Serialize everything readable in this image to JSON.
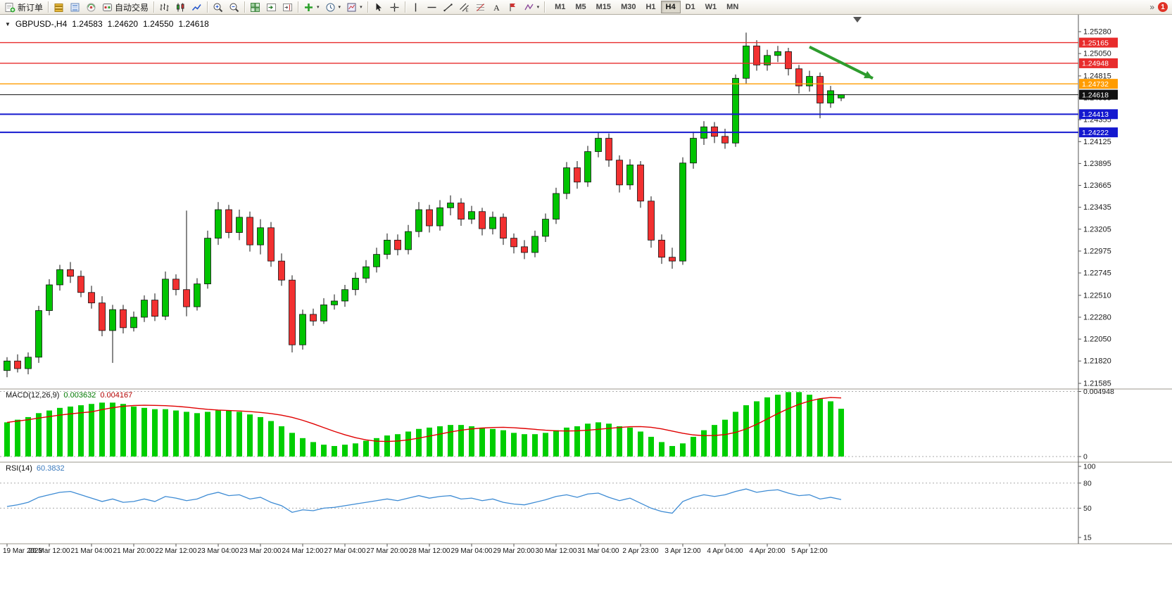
{
  "icons": {
    "collapse_arrow": "▼",
    "caret": "▾",
    "chevron_double": "»"
  },
  "toolbar": {
    "left": [
      {
        "type": "btn",
        "icon": "new-order-icon",
        "label": "新订单"
      },
      {
        "type": "sep"
      },
      {
        "type": "btn",
        "icon": "price-list-icon"
      },
      {
        "type": "btn",
        "icon": "depth-of-market-icon"
      },
      {
        "type": "btn",
        "icon": "community-icon"
      },
      {
        "type": "btn",
        "icon": "autotrading-icon",
        "label": "自动交易"
      },
      {
        "type": "sep"
      },
      {
        "type": "btn",
        "icon": "bar-chart-icon"
      },
      {
        "type": "btn",
        "icon": "candlestick-chart-icon"
      },
      {
        "type": "btn",
        "icon": "line-chart-icon"
      },
      {
        "type": "sep"
      },
      {
        "type": "btn",
        "icon": "zoom-in-icon"
      },
      {
        "type": "btn",
        "icon": "zoom-out-icon"
      },
      {
        "type": "sep"
      },
      {
        "type": "btn",
        "icon": "tile-windows-icon"
      },
      {
        "type": "btn",
        "icon": "auto-scroll-icon"
      },
      {
        "type": "btn",
        "icon": "chart-shift-icon"
      },
      {
        "type": "sep"
      },
      {
        "type": "btn",
        "icon": "add-indicator-icon",
        "caret": true
      },
      {
        "type": "btn",
        "icon": "period-clock-icon",
        "caret": true
      },
      {
        "type": "btn",
        "icon": "template-icon",
        "caret": true
      },
      {
        "type": "sep"
      },
      {
        "type": "btn",
        "icon": "cursor-icon"
      },
      {
        "type": "btn",
        "icon": "crosshair-icon"
      },
      {
        "type": "sep"
      },
      {
        "type": "btn",
        "icon": "vertical-line-icon"
      },
      {
        "type": "btn",
        "icon": "horizontal-line-icon"
      },
      {
        "type": "btn",
        "icon": "trendline-icon"
      },
      {
        "type": "btn",
        "icon": "channel-icon"
      },
      {
        "type": "btn",
        "icon": "fibonacci-icon"
      },
      {
        "type": "btn",
        "icon": "text-icon"
      },
      {
        "type": "btn",
        "icon": "arrow-label-icon"
      },
      {
        "type": "btn",
        "icon": "shapes-icon",
        "caret": true
      },
      {
        "type": "sep"
      }
    ],
    "timeframes": [
      "M1",
      "M5",
      "M15",
      "M30",
      "H1",
      "H4",
      "D1",
      "W1",
      "MN"
    ],
    "active_timeframe": "H4",
    "notification_count": "1"
  },
  "header": {
    "symbol_period": "GBPUSD-,H4",
    "open": "1.24583",
    "high": "1.24620",
    "low": "1.24550",
    "close": "1.24618"
  },
  "macd": {
    "name": "MACD(12,26,9)",
    "value": "0.003632",
    "signal": "0.004167"
  },
  "rsi": {
    "name": "RSI(14)",
    "value": "60.3832"
  },
  "chart_data": {
    "type": "candlestick",
    "symbol": "GBPUSD-",
    "timeframe": "H4",
    "ohlc": [
      [
        1.2172,
        1.2186,
        1.2165,
        1.2182
      ],
      [
        1.2182,
        1.2189,
        1.217,
        1.2174
      ],
      [
        1.2174,
        1.2191,
        1.2168,
        1.2186
      ],
      [
        1.2186,
        1.224,
        1.218,
        1.2235
      ],
      [
        1.2235,
        1.2268,
        1.223,
        1.2262
      ],
      [
        1.2262,
        1.2283,
        1.2256,
        1.2278
      ],
      [
        1.2278,
        1.2286,
        1.2264,
        1.2271
      ],
      [
        1.2271,
        1.2277,
        1.2249,
        1.2254
      ],
      [
        1.2254,
        1.2261,
        1.2237,
        1.2243
      ],
      [
        1.2243,
        1.225,
        1.2208,
        1.2214
      ],
      [
        1.2214,
        1.2241,
        1.218,
        1.2236
      ],
      [
        1.2236,
        1.2241,
        1.2211,
        1.2217
      ],
      [
        1.2217,
        1.2234,
        1.2213,
        1.2228
      ],
      [
        1.2228,
        1.2251,
        1.2223,
        1.2246
      ],
      [
        1.2246,
        1.2253,
        1.2224,
        1.2229
      ],
      [
        1.2229,
        1.2276,
        1.2225,
        1.2268
      ],
      [
        1.2268,
        1.2273,
        1.2251,
        1.2257
      ],
      [
        1.2257,
        1.234,
        1.2229,
        1.2239
      ],
      [
        1.2239,
        1.2269,
        1.2235,
        1.2263
      ],
      [
        1.2263,
        1.2319,
        1.2258,
        1.2311
      ],
      [
        1.2311,
        1.2349,
        1.2304,
        1.2341
      ],
      [
        1.2341,
        1.2346,
        1.2311,
        1.2317
      ],
      [
        1.2317,
        1.2341,
        1.2309,
        1.2333
      ],
      [
        1.2333,
        1.2339,
        1.2297,
        1.2304
      ],
      [
        1.2304,
        1.2331,
        1.2294,
        1.2322
      ],
      [
        1.2322,
        1.2328,
        1.2281,
        1.2287
      ],
      [
        1.2287,
        1.2295,
        1.2261,
        1.2267
      ],
      [
        1.2267,
        1.2272,
        1.2191,
        1.2199
      ],
      [
        1.2199,
        1.2236,
        1.2194,
        1.2231
      ],
      [
        1.2231,
        1.2237,
        1.2219,
        1.2224
      ],
      [
        1.2224,
        1.2248,
        1.2221,
        1.2241
      ],
      [
        1.2241,
        1.2252,
        1.2236,
        1.2245
      ],
      [
        1.2245,
        1.2262,
        1.2239,
        1.2257
      ],
      [
        1.2257,
        1.2275,
        1.2251,
        1.2269
      ],
      [
        1.2269,
        1.2288,
        1.2264,
        1.2281
      ],
      [
        1.2281,
        1.2301,
        1.2275,
        1.2294
      ],
      [
        1.2294,
        1.2316,
        1.2289,
        1.2309
      ],
      [
        1.2309,
        1.2315,
        1.2293,
        1.2299
      ],
      [
        1.2299,
        1.2325,
        1.2294,
        1.2318
      ],
      [
        1.2318,
        1.2349,
        1.2312,
        1.2341
      ],
      [
        1.2341,
        1.2346,
        1.2317,
        1.2324
      ],
      [
        1.2324,
        1.2351,
        1.2319,
        1.2343
      ],
      [
        1.2343,
        1.2356,
        1.2335,
        1.2348
      ],
      [
        1.2348,
        1.2353,
        1.2324,
        1.2331
      ],
      [
        1.2331,
        1.2345,
        1.2326,
        1.2339
      ],
      [
        1.2339,
        1.2343,
        1.2314,
        1.2321
      ],
      [
        1.2321,
        1.2339,
        1.2315,
        1.2333
      ],
      [
        1.2333,
        1.2337,
        1.2304,
        1.2311
      ],
      [
        1.2311,
        1.2316,
        1.2295,
        1.2302
      ],
      [
        1.2302,
        1.2309,
        1.2289,
        1.2296
      ],
      [
        1.2296,
        1.2319,
        1.2291,
        1.2313
      ],
      [
        1.2313,
        1.2337,
        1.2307,
        1.2331
      ],
      [
        1.2331,
        1.2364,
        1.2326,
        1.2358
      ],
      [
        1.2358,
        1.2391,
        1.2352,
        1.2385
      ],
      [
        1.2385,
        1.2392,
        1.2363,
        1.237
      ],
      [
        1.237,
        1.2408,
        1.2365,
        1.2402
      ],
      [
        1.2402,
        1.2422,
        1.2396,
        1.2416
      ],
      [
        1.2416,
        1.2421,
        1.2386,
        1.2393
      ],
      [
        1.2393,
        1.2398,
        1.2359,
        1.2367
      ],
      [
        1.2367,
        1.2394,
        1.2362,
        1.2388
      ],
      [
        1.2388,
        1.2392,
        1.2343,
        1.235
      ],
      [
        1.235,
        1.2355,
        1.2301,
        1.2309
      ],
      [
        1.2309,
        1.2315,
        1.2284,
        1.2291
      ],
      [
        1.2291,
        1.2301,
        1.2279,
        1.2287
      ],
      [
        1.2287,
        1.2396,
        1.2283,
        1.239
      ],
      [
        1.239,
        1.2423,
        1.2384,
        1.2416
      ],
      [
        1.2416,
        1.2434,
        1.2409,
        1.2428
      ],
      [
        1.2428,
        1.2433,
        1.2411,
        1.2418
      ],
      [
        1.2418,
        1.2426,
        1.2405,
        1.2411
      ],
      [
        1.2411,
        1.2483,
        1.2407,
        1.2479
      ],
      [
        1.2479,
        1.2527,
        1.2473,
        1.2513
      ],
      [
        1.2513,
        1.2519,
        1.2487,
        1.2493
      ],
      [
        1.2493,
        1.2509,
        1.2487,
        1.2503
      ],
      [
        1.2503,
        1.2513,
        1.2496,
        1.2507
      ],
      [
        1.2507,
        1.2511,
        1.2482,
        1.2489
      ],
      [
        1.2489,
        1.2493,
        1.2463,
        1.2471
      ],
      [
        1.2471,
        1.2487,
        1.2465,
        1.2481
      ],
      [
        1.2481,
        1.2485,
        1.2437,
        1.2453
      ],
      [
        1.2453,
        1.2471,
        1.2448,
        1.2466
      ],
      [
        1.24583,
        1.2462,
        1.2455,
        1.24618
      ]
    ],
    "macd_hist": [
      0.0026,
      0.0028,
      0.003,
      0.0033,
      0.0035,
      0.0037,
      0.0038,
      0.0039,
      0.004,
      0.0041,
      0.0041,
      0.004,
      0.0038,
      0.0037,
      0.0036,
      0.0036,
      0.0035,
      0.0034,
      0.0033,
      0.0034,
      0.0035,
      0.0035,
      0.0034,
      0.0032,
      0.003,
      0.0027,
      0.0023,
      0.0018,
      0.0014,
      0.0011,
      0.0009,
      0.0008,
      0.0009,
      0.001,
      0.0012,
      0.0014,
      0.0016,
      0.0017,
      0.0019,
      0.0021,
      0.0022,
      0.0023,
      0.0024,
      0.0024,
      0.0023,
      0.0022,
      0.0021,
      0.002,
      0.0018,
      0.0017,
      0.0017,
      0.0018,
      0.002,
      0.0022,
      0.0023,
      0.0025,
      0.0026,
      0.0025,
      0.0023,
      0.0022,
      0.0019,
      0.0015,
      0.0011,
      0.0008,
      0.001,
      0.0015,
      0.002,
      0.0024,
      0.0028,
      0.0034,
      0.0039,
      0.0042,
      0.0045,
      0.0047,
      0.0049,
      0.0049,
      0.0047,
      0.0044,
      0.0042,
      0.003632
    ],
    "rsi": [
      52,
      54,
      57,
      63,
      66,
      69,
      70,
      66,
      62,
      58,
      61,
      57,
      58,
      61,
      58,
      64,
      62,
      59,
      61,
      66,
      69,
      65,
      66,
      61,
      63,
      57,
      53,
      45,
      48,
      47,
      50,
      51,
      53,
      55,
      57,
      59,
      61,
      59,
      62,
      65,
      62,
      64,
      65,
      61,
      62,
      59,
      61,
      57,
      55,
      54,
      57,
      60,
      64,
      66,
      63,
      67,
      68,
      63,
      59,
      62,
      56,
      50,
      46,
      44,
      58,
      63,
      66,
      64,
      66,
      70,
      73,
      69,
      71,
      72,
      68,
      65,
      66,
      61,
      63,
      60.38
    ],
    "time_labels": [
      "19 Mar 2023",
      "20 Mar 12:00",
      "21 Mar 04:00",
      "21 Mar 20:00",
      "22 Mar 12:00",
      "23 Mar 04:00",
      "23 Mar 20:00",
      "24 Mar 12:00",
      "27 Mar 04:00",
      "27 Mar 20:00",
      "28 Mar 12:00",
      "29 Mar 04:00",
      "29 Mar 20:00",
      "30 Mar 12:00",
      "31 Mar 04:00",
      "2 Apr 23:00",
      "3 Apr 12:00",
      "4 Apr 04:00",
      "4 Apr 20:00",
      "5 Apr 12:00"
    ],
    "price_axis_labels": [
      "1.25280",
      "1.25050",
      "1.24815",
      "1.24585",
      "1.24355",
      "1.24125",
      "1.23895",
      "1.23665",
      "1.23435",
      "1.23205",
      "1.22975",
      "1.22745",
      "1.22510",
      "1.22280",
      "1.22050",
      "1.21820",
      "1.21585"
    ],
    "lines": [
      {
        "name": "resistance-line-1",
        "value": 1.25165,
        "label": "1.25165",
        "color": "#e82c2c",
        "width": 1.3,
        "object": true
      },
      {
        "name": "resistance-line-2",
        "value": 1.24948,
        "label": "1.24948",
        "color": "#e82c2c",
        "width": 1.3,
        "object": true
      },
      {
        "name": "pivot-line",
        "value": 1.24732,
        "label": "1.24732",
        "color": "#ff9c00",
        "width": 1.4,
        "object": true
      },
      {
        "name": "bid-price-line",
        "value": 1.24618,
        "label": "1.24618",
        "color": "#111111",
        "width": 1,
        "object": false
      },
      {
        "name": "support-line-1",
        "value": 1.24413,
        "label": "1.24413",
        "color": "#1418cf",
        "width": 2,
        "object": true
      },
      {
        "name": "support-line-2",
        "value": 1.24222,
        "label": "1.24222",
        "color": "#1418cf",
        "width": 2,
        "object": true
      }
    ],
    "macd_axis": {
      "max_label": "0.004948",
      "min_label": "0"
    },
    "rsi_axis_labels": [
      "100",
      "80",
      "50",
      "15"
    ],
    "rsi_dashed_levels": [
      80,
      50
    ],
    "annotation_arrow": {
      "from_bar": 76,
      "from_price": 1.2512,
      "to_bar": 82,
      "to_price": 1.2479,
      "color": "#2e9c2e"
    }
  }
}
